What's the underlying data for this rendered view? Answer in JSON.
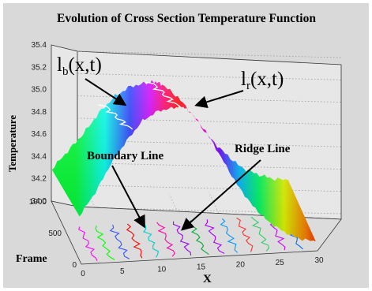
{
  "chart_data": {
    "type": "surface",
    "title": "Evolution of Cross Section Temperature Function",
    "xlabel": "X",
    "ylabel": "Frame",
    "zlabel": "Temperature",
    "xlim": [
      0,
      30
    ],
    "ylim": [
      0,
      1000
    ],
    "zlim": [
      34.0,
      35.4
    ],
    "x_ticks": [
      "0",
      "5",
      "10",
      "15",
      "20",
      "25",
      "30"
    ],
    "y_ticks": [
      "0",
      "500",
      "1000"
    ],
    "z_ticks": [
      "34.0",
      "34.2",
      "34.4",
      "34.6",
      "34.8",
      "35.0",
      "35.2",
      "35.4"
    ],
    "grid": true,
    "colormap": "hsv",
    "profile_front": {
      "x": [
        0,
        2,
        4,
        6,
        8,
        10,
        12,
        13,
        14,
        16,
        18,
        20,
        22,
        24,
        26,
        28,
        30
      ],
      "temperature": [
        34.4,
        34.6,
        34.85,
        35.05,
        35.22,
        35.3,
        35.32,
        35.33,
        35.28,
        35.1,
        34.85,
        34.6,
        34.4,
        34.25,
        34.15,
        34.08,
        34.05
      ]
    },
    "profile_back": {
      "x": [
        0,
        2,
        4,
        6,
        8,
        10,
        12,
        13,
        14,
        16,
        18,
        20,
        22,
        24,
        26,
        28,
        30
      ],
      "temperature": [
        34.3,
        34.45,
        34.6,
        34.78,
        34.92,
        35.0,
        35.02,
        35.03,
        35.0,
        34.88,
        34.7,
        34.5,
        34.35,
        34.22,
        34.15,
        34.1,
        34.08
      ]
    },
    "annotations": {
      "boundary_curve": "l_b(x,t)",
      "ridge_curve": "l_r(x,t)",
      "boundary_line": "Boundary Line",
      "ridge_line": "Ridge Line"
    }
  },
  "colors": {
    "background": "#d9d9d9",
    "axis": "#333333",
    "grid": "#9a9a9a",
    "text": "#000000",
    "ridge_trace": "#ffffff"
  }
}
